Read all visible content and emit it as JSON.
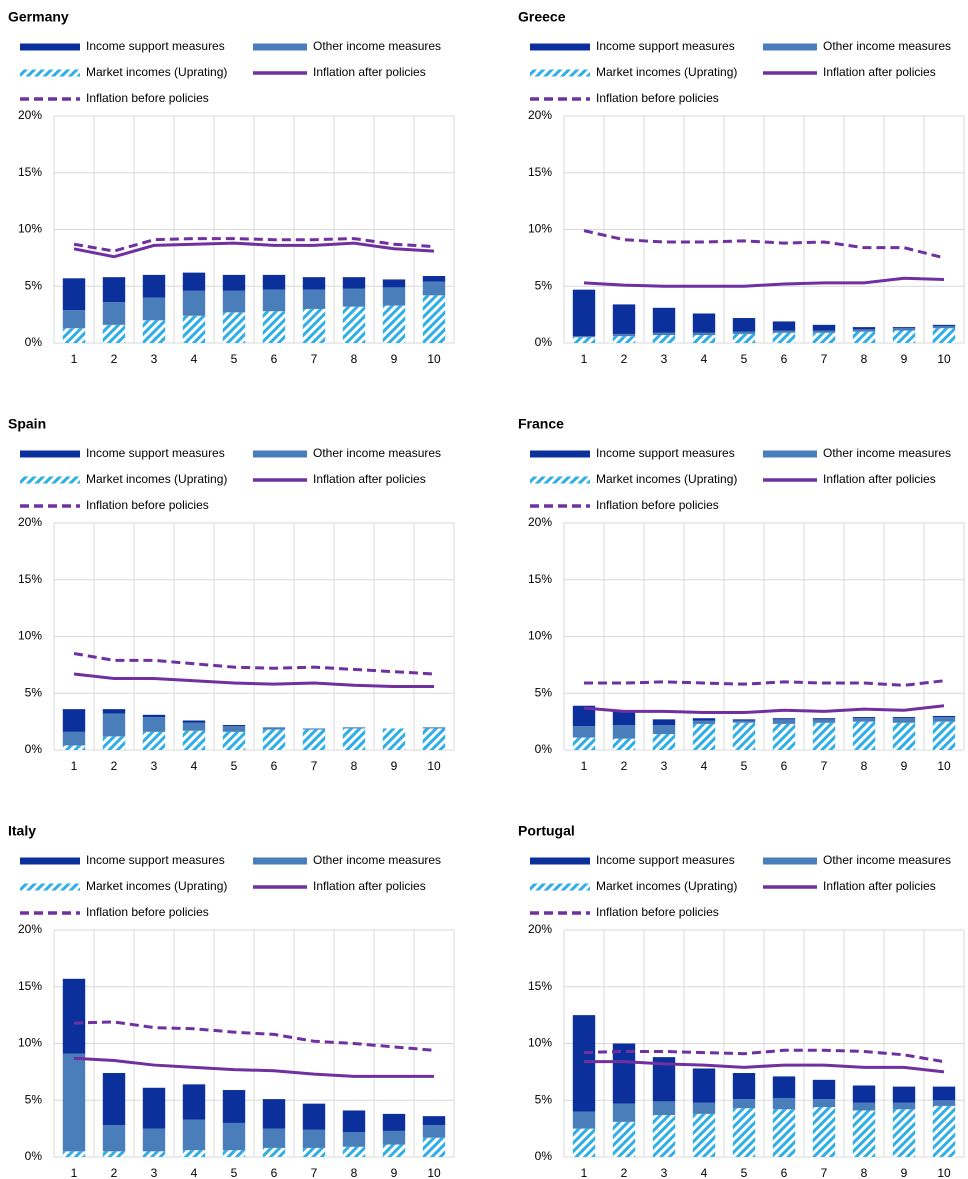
{
  "chart_data": [
    {
      "type": "bar",
      "title": "Germany",
      "categories": [
        1,
        2,
        3,
        4,
        5,
        6,
        7,
        8,
        9,
        10
      ],
      "ylim": [
        0,
        20
      ],
      "yticks": [
        {
          "value": 0,
          "label": "0%"
        },
        {
          "value": 5,
          "label": "5%"
        },
        {
          "value": 10,
          "label": "10%"
        },
        {
          "value": 15,
          "label": "15%"
        },
        {
          "value": 20,
          "label": "20%"
        }
      ],
      "grid": true,
      "series": [
        {
          "name": "Income support measures",
          "color": "#0b2f9b",
          "mark": "bar",
          "values": [
            2.8,
            2.2,
            2.0,
            1.6,
            1.4,
            1.3,
            1.1,
            1.0,
            0.7,
            0.5
          ]
        },
        {
          "name": "Other income measures",
          "color": "#4a7ebb",
          "mark": "bar",
          "values": [
            1.6,
            2.0,
            2.0,
            2.2,
            1.9,
            1.9,
            1.7,
            1.6,
            1.6,
            1.2
          ]
        },
        {
          "name": "Market incomes (Uprating)",
          "color": "#2eaee6",
          "mark": "bar",
          "hatch": true,
          "values": [
            1.3,
            1.6,
            2.0,
            2.4,
            2.7,
            2.8,
            3.0,
            3.2,
            3.3,
            4.2
          ]
        },
        {
          "name": "Inflation after policies",
          "color": "#7030a0",
          "mark": "line",
          "values": [
            8.3,
            7.6,
            8.6,
            8.7,
            8.8,
            8.6,
            8.6,
            8.8,
            8.3,
            8.1
          ]
        },
        {
          "name": "Inflation before policies",
          "color": "#7030a0",
          "mark": "line",
          "dashed": true,
          "values": [
            8.7,
            8.1,
            9.1,
            9.2,
            9.2,
            9.1,
            9.1,
            9.2,
            8.7,
            8.5
          ]
        }
      ]
    },
    {
      "type": "bar",
      "title": "Greece",
      "categories": [
        1,
        2,
        3,
        4,
        5,
        6,
        7,
        8,
        9,
        10
      ],
      "ylim": [
        0,
        20
      ],
      "yticks": [
        {
          "value": 0,
          "label": "0%"
        },
        {
          "value": 5,
          "label": "5%"
        },
        {
          "value": 10,
          "label": "10%"
        },
        {
          "value": 15,
          "label": "15%"
        },
        {
          "value": 20,
          "label": "20%"
        }
      ],
      "grid": true,
      "series": [
        {
          "name": "Income support measures",
          "color": "#0b2f9b",
          "mark": "bar",
          "values": [
            4.1,
            2.6,
            2.2,
            1.7,
            1.2,
            0.8,
            0.5,
            0.2,
            0.1,
            0.1
          ]
        },
        {
          "name": "Other income measures",
          "color": "#4a7ebb",
          "mark": "bar",
          "values": [
            0.1,
            0.2,
            0.2,
            0.2,
            0.2,
            0.2,
            0.2,
            0.2,
            0.2,
            0.2
          ]
        },
        {
          "name": "Market incomes (Uprating)",
          "color": "#2eaee6",
          "mark": "bar",
          "hatch": true,
          "values": [
            0.5,
            0.6,
            0.7,
            0.7,
            0.8,
            0.9,
            0.9,
            1.0,
            1.1,
            1.3
          ]
        },
        {
          "name": "Inflation after policies",
          "color": "#7030a0",
          "mark": "line",
          "values": [
            5.3,
            5.1,
            5.0,
            5.0,
            5.0,
            5.2,
            5.3,
            5.3,
            5.7,
            5.6
          ]
        },
        {
          "name": "Inflation before policies",
          "color": "#7030a0",
          "mark": "line",
          "dashed": true,
          "values": [
            9.9,
            9.1,
            8.9,
            8.9,
            9.0,
            8.8,
            8.9,
            8.4,
            8.4,
            7.5
          ]
        }
      ]
    },
    {
      "type": "bar",
      "title": "Spain",
      "categories": [
        1,
        2,
        3,
        4,
        5,
        6,
        7,
        8,
        9,
        10
      ],
      "ylim": [
        0,
        20
      ],
      "yticks": [
        {
          "value": 0,
          "label": "0%"
        },
        {
          "value": 5,
          "label": "5%"
        },
        {
          "value": 10,
          "label": "10%"
        },
        {
          "value": 15,
          "label": "15%"
        },
        {
          "value": 20,
          "label": "20%"
        }
      ],
      "grid": true,
      "series": [
        {
          "name": "Income support measures",
          "color": "#0b2f9b",
          "mark": "bar",
          "values": [
            2.0,
            0.4,
            0.2,
            0.2,
            0.1,
            0,
            0,
            0,
            0,
            0
          ]
        },
        {
          "name": "Other income measures",
          "color": "#4a7ebb",
          "mark": "bar",
          "values": [
            1.2,
            2.0,
            1.3,
            0.7,
            0.5,
            0.2,
            0.1,
            0.1,
            0,
            0.1
          ]
        },
        {
          "name": "Market incomes (Uprating)",
          "color": "#2eaee6",
          "mark": "bar",
          "hatch": true,
          "values": [
            0.4,
            1.2,
            1.6,
            1.7,
            1.6,
            1.8,
            1.8,
            1.9,
            1.9,
            1.9
          ]
        },
        {
          "name": "Inflation after policies",
          "color": "#7030a0",
          "mark": "line",
          "values": [
            6.7,
            6.3,
            6.3,
            6.1,
            5.9,
            5.8,
            5.9,
            5.7,
            5.6,
            5.6
          ]
        },
        {
          "name": "Inflation before policies",
          "color": "#7030a0",
          "mark": "line",
          "dashed": true,
          "values": [
            8.5,
            7.9,
            7.9,
            7.6,
            7.3,
            7.2,
            7.3,
            7.1,
            6.9,
            6.7
          ]
        }
      ]
    },
    {
      "type": "bar",
      "title": "France",
      "categories": [
        1,
        2,
        3,
        4,
        5,
        6,
        7,
        8,
        9,
        10
      ],
      "ylim": [
        0,
        20
      ],
      "yticks": [
        {
          "value": 0,
          "label": "0%"
        },
        {
          "value": 5,
          "label": "5%"
        },
        {
          "value": 10,
          "label": "10%"
        },
        {
          "value": 15,
          "label": "15%"
        },
        {
          "value": 20,
          "label": "20%"
        }
      ],
      "grid": true,
      "series": [
        {
          "name": "Income support measures",
          "color": "#0b2f9b",
          "mark": "bar",
          "values": [
            1.8,
            1.2,
            0.5,
            0.2,
            0.1,
            0.1,
            0.1,
            0.1,
            0.1,
            0.1
          ]
        },
        {
          "name": "Other income measures",
          "color": "#4a7ebb",
          "mark": "bar",
          "values": [
            1.0,
            1.2,
            0.8,
            0.3,
            0.2,
            0.4,
            0.3,
            0.3,
            0.4,
            0.4
          ]
        },
        {
          "name": "Market incomes (Uprating)",
          "color": "#2eaee6",
          "mark": "bar",
          "hatch": true,
          "values": [
            1.1,
            1.0,
            1.4,
            2.3,
            2.4,
            2.3,
            2.4,
            2.5,
            2.4,
            2.5
          ]
        },
        {
          "name": "Inflation after policies",
          "color": "#7030a0",
          "mark": "line",
          "values": [
            3.7,
            3.4,
            3.4,
            3.3,
            3.3,
            3.5,
            3.4,
            3.6,
            3.5,
            3.9
          ]
        },
        {
          "name": "Inflation before policies",
          "color": "#7030a0",
          "mark": "line",
          "dashed": true,
          "values": [
            5.9,
            5.9,
            6.0,
            5.9,
            5.8,
            6.0,
            5.9,
            5.9,
            5.7,
            6.1
          ]
        }
      ]
    },
    {
      "type": "bar",
      "title": "Italy",
      "categories": [
        1,
        2,
        3,
        4,
        5,
        6,
        7,
        8,
        9,
        10
      ],
      "ylim": [
        0,
        20
      ],
      "yticks": [
        {
          "value": 0,
          "label": "0%"
        },
        {
          "value": 5,
          "label": "5%"
        },
        {
          "value": 10,
          "label": "10%"
        },
        {
          "value": 15,
          "label": "15%"
        },
        {
          "value": 20,
          "label": "20%"
        }
      ],
      "grid": true,
      "series": [
        {
          "name": "Income support measures",
          "color": "#0b2f9b",
          "mark": "bar",
          "values": [
            6.6,
            4.6,
            3.6,
            3.1,
            2.9,
            2.6,
            2.3,
            1.9,
            1.5,
            0.8
          ]
        },
        {
          "name": "Other income measures",
          "color": "#4a7ebb",
          "mark": "bar",
          "values": [
            8.6,
            2.3,
            2.0,
            2.7,
            2.4,
            1.7,
            1.6,
            1.3,
            1.2,
            1.1
          ]
        },
        {
          "name": "Market incomes (Uprating)",
          "color": "#2eaee6",
          "mark": "bar",
          "hatch": true,
          "values": [
            0.5,
            0.5,
            0.5,
            0.6,
            0.6,
            0.8,
            0.8,
            0.9,
            1.1,
            1.7
          ]
        },
        {
          "name": "Inflation after policies",
          "color": "#7030a0",
          "mark": "line",
          "values": [
            8.7,
            8.5,
            8.1,
            7.9,
            7.7,
            7.6,
            7.3,
            7.1,
            7.1,
            7.1
          ]
        },
        {
          "name": "Inflation before policies",
          "color": "#7030a0",
          "mark": "line",
          "dashed": true,
          "values": [
            11.8,
            11.9,
            11.4,
            11.3,
            11.0,
            10.8,
            10.2,
            10.0,
            9.7,
            9.4
          ]
        }
      ]
    },
    {
      "type": "bar",
      "title": "Portugal",
      "categories": [
        1,
        2,
        3,
        4,
        5,
        6,
        7,
        8,
        9,
        10
      ],
      "ylim": [
        0,
        20
      ],
      "yticks": [
        {
          "value": 0,
          "label": "0%"
        },
        {
          "value": 5,
          "label": "5%"
        },
        {
          "value": 10,
          "label": "10%"
        },
        {
          "value": 15,
          "label": "15%"
        },
        {
          "value": 20,
          "label": "20%"
        }
      ],
      "grid": true,
      "series": [
        {
          "name": "Income support measures",
          "color": "#0b2f9b",
          "mark": "bar",
          "values": [
            8.5,
            5.3,
            3.9,
            3.0,
            2.3,
            1.9,
            1.7,
            1.5,
            1.4,
            1.2
          ]
        },
        {
          "name": "Other income measures",
          "color": "#4a7ebb",
          "mark": "bar",
          "values": [
            1.5,
            1.6,
            1.2,
            1.0,
            0.8,
            1.0,
            0.7,
            0.7,
            0.6,
            0.5
          ]
        },
        {
          "name": "Market incomes (Uprating)",
          "color": "#2eaee6",
          "mark": "bar",
          "hatch": true,
          "values": [
            2.5,
            3.1,
            3.7,
            3.8,
            4.3,
            4.2,
            4.4,
            4.1,
            4.2,
            4.5
          ]
        },
        {
          "name": "Inflation after policies",
          "color": "#7030a0",
          "mark": "line",
          "values": [
            8.4,
            8.4,
            8.2,
            8.1,
            7.9,
            8.1,
            8.1,
            7.9,
            7.9,
            7.5
          ]
        },
        {
          "name": "Inflation before policies",
          "color": "#7030a0",
          "mark": "line",
          "dashed": true,
          "values": [
            9.2,
            9.3,
            9.3,
            9.2,
            9.1,
            9.4,
            9.4,
            9.3,
            9.0,
            8.4
          ]
        }
      ]
    }
  ]
}
